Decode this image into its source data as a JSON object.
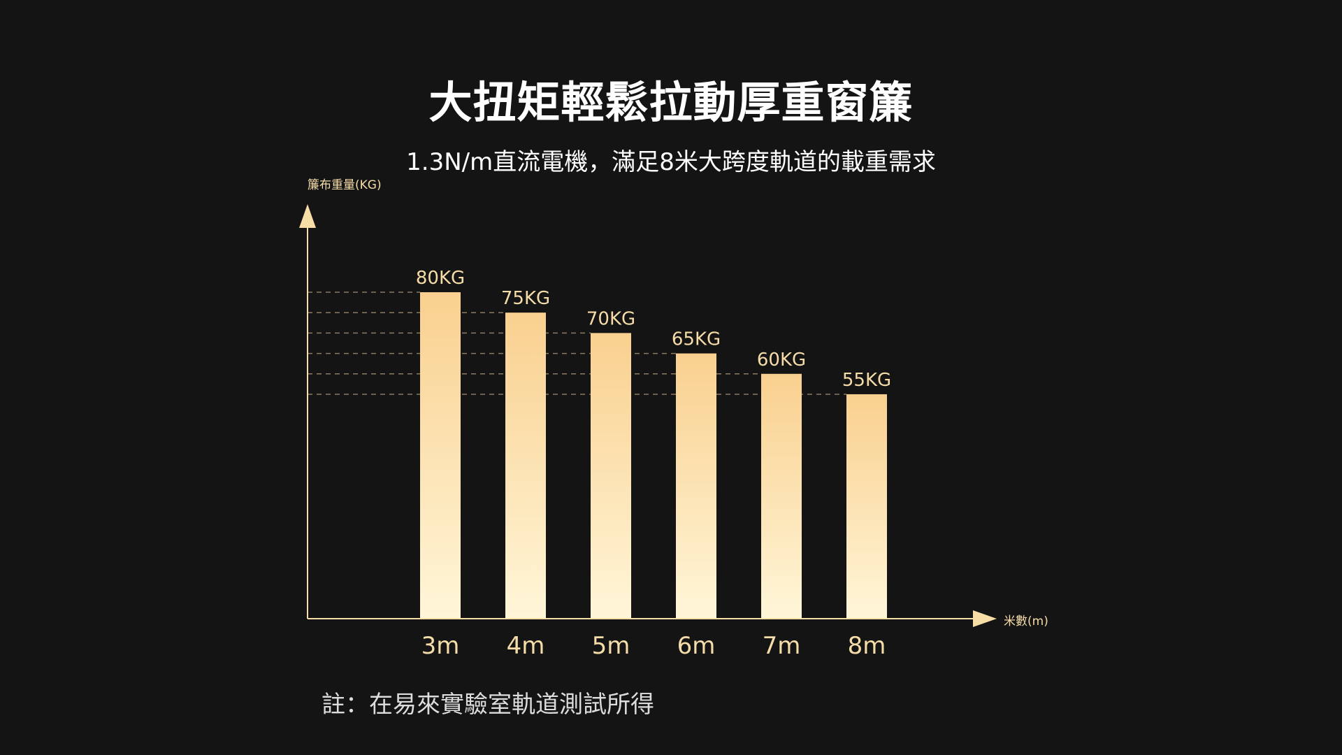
{
  "title": "大扭矩輕鬆拉動厚重窗簾",
  "subtitle": "1.3N/m直流電機，滿足8米大跨度軌道的載重需求",
  "footnote": "註：在易來實驗室軌道測試所得",
  "colors": {
    "background": "#141414",
    "bar_top": "#f9d08f",
    "bar_bottom": "#fff6d8",
    "axis": "#f7dda6",
    "label": "#f5dca8",
    "gridline": "#8a7b62"
  },
  "chart_data": {
    "type": "bar",
    "title": "大扭矩輕鬆拉動厚重窗簾",
    "xlabel": "米數(m)",
    "ylabel": "簾布重量(KG)",
    "categories": [
      "3m",
      "4m",
      "5m",
      "6m",
      "7m",
      "8m"
    ],
    "values": [
      80,
      75,
      70,
      65,
      60,
      55
    ],
    "value_labels": [
      "80KG",
      "75KG",
      "70KG",
      "65KG",
      "60KG",
      "55KG"
    ],
    "unit": "KG",
    "ylim": [
      0,
      80
    ],
    "grid": "dashed guide lines at each bar value",
    "legend": "none"
  }
}
